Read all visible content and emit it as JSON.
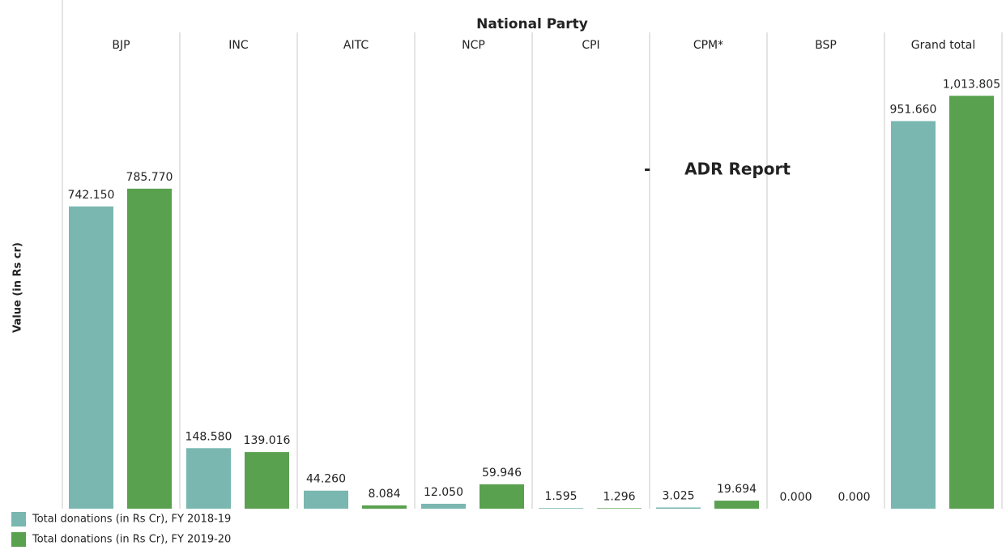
{
  "chart_data": {
    "type": "bar",
    "title": "National Party",
    "y_label": "Value (in Rs cr)",
    "annotation": "-      ADR Report",
    "categories": [
      "BJP",
      "INC",
      "AITC",
      "NCP",
      "CPI",
      "CPM*",
      "BSP",
      "Grand total"
    ],
    "series": [
      {
        "name": "Total donations (in Rs Cr), FY 2018-19",
        "color": "#79b7b0",
        "values": [
          742.15,
          148.58,
          44.26,
          12.05,
          1.595,
          3.025,
          0,
          951.66
        ],
        "value_labels": [
          "742.150",
          "148.580",
          "44.260",
          "12.050",
          "1.595",
          "3.025",
          "0.000",
          "951.660"
        ]
      },
      {
        "name": "Total donations (in Rs Cr), FY 2019-20",
        "color": "#59a14f",
        "values": [
          785.77,
          139.016,
          8.084,
          59.946,
          1.296,
          19.694,
          0,
          1013.805
        ],
        "value_labels": [
          "785.770",
          "139.016",
          "8.084",
          "59.946",
          "1.296",
          "19.694",
          "0.000",
          "1,013.805"
        ]
      }
    ],
    "ylim": [
      0,
      1070
    ]
  }
}
